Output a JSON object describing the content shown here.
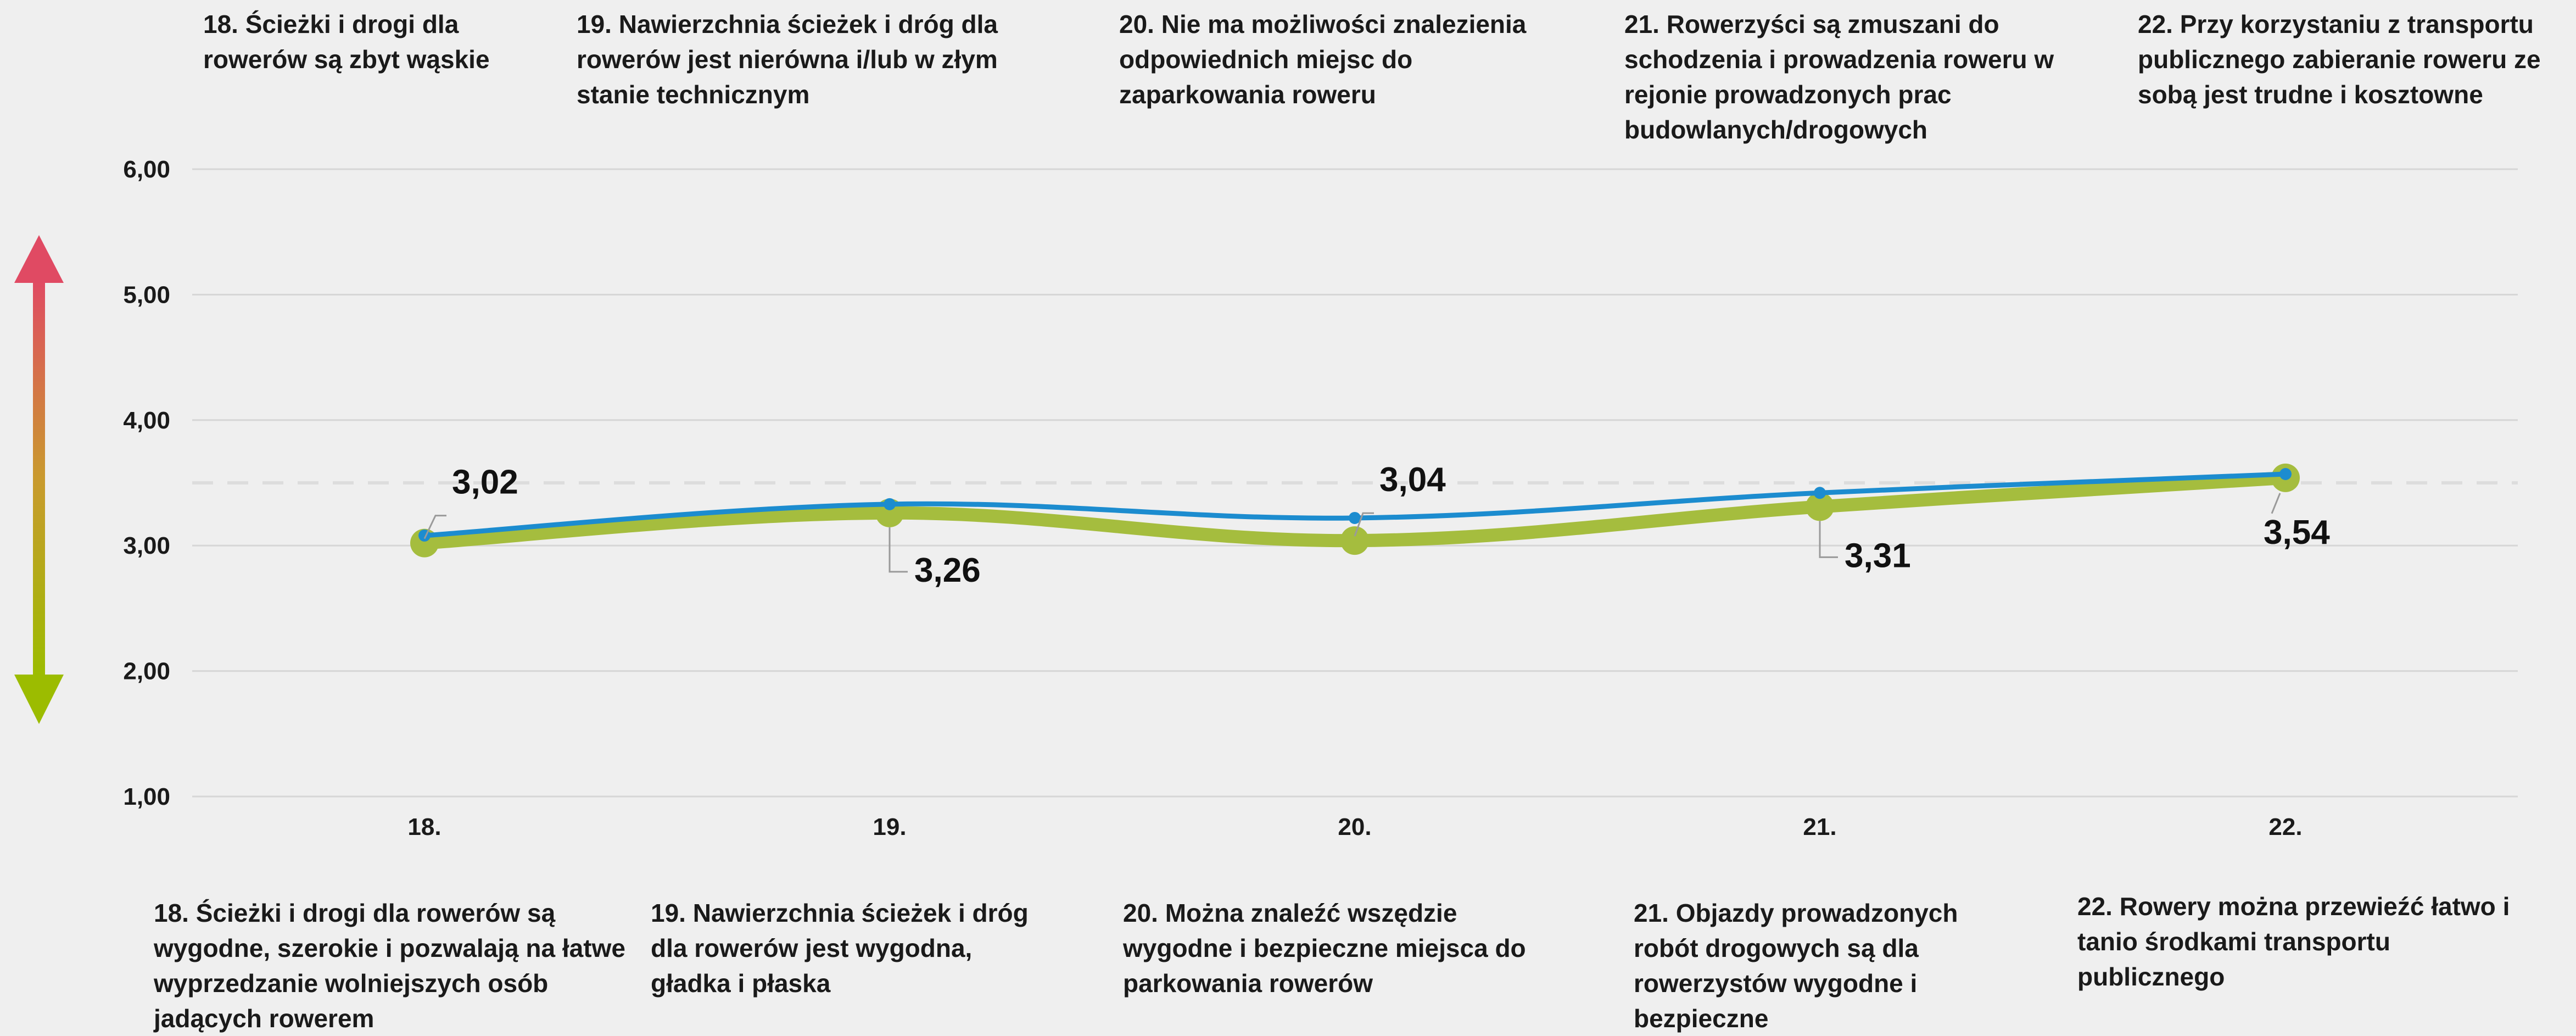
{
  "colors": {
    "background": "#efefef",
    "grid": "#d6d6d6",
    "reference_line": "#dddddd",
    "blue_series": "#1c8ccf",
    "green_series": "#a5bd3e",
    "arrow_top": "#e04a63",
    "arrow_bottom": "#9cbc00"
  },
  "icons": {
    "scale_arrow": "double-headed-vertical-arrow-icon"
  },
  "top_labels": [
    "18. Ścieżki i drogi dla rowerów są zbyt wąskie",
    "19. Nawierzchnia ścieżek i dróg dla rowerów jest nierówna i/lub w złym stanie technicznym",
    "20. Nie ma możliwości znalezienia odpowiednich miejsc do zaparkowania roweru",
    "21. Rowerzyści są zmuszani do schodzenia i prowadzenia roweru w rejonie prowadzonych prac budowlanych/drogowych",
    "22. Przy korzystaniu z transportu publicznego zabieranie roweru ze sobą jest trudne i kosztowne"
  ],
  "bottom_labels": [
    "18. Ścieżki i drogi dla rowerów są wygodne, szerokie i pozwalają na łatwe wyprzedzanie wolniejszych osób jadących rowerem",
    "19. Nawierzchnia ścieżek i dróg dla rowerów jest wygodna, gładka i płaska",
    "20. Można znaleźć wszędzie wygodne i bezpieczne miejsca do parkowania rowerów",
    "21. Objazdy prowadzonych robót drogowych są dla rowerzystów wygodne i bezpieczne",
    "22. Rowery można przewieźć łatwo i tanio środkami transportu publicznego"
  ],
  "chart_data": {
    "type": "line",
    "categories": [
      "18.",
      "19.",
      "20.",
      "21.",
      "22."
    ],
    "ylim": [
      1,
      6
    ],
    "y_ticks": [
      "1,00",
      "2,00",
      "3,00",
      "4,00",
      "5,00",
      "6,00"
    ],
    "reference_line_y": 3.5,
    "grid": true,
    "series": [
      {
        "values": [
          3.08,
          3.33,
          3.22,
          3.42,
          3.57
        ],
        "color": "#1c8ccf"
      },
      {
        "values": [
          3.02,
          3.26,
          3.04,
          3.31,
          3.54
        ],
        "color": "#a5bd3e",
        "labels": [
          "3,02",
          "3,26",
          "3,04",
          "3,31",
          "3,54"
        ]
      }
    ]
  }
}
